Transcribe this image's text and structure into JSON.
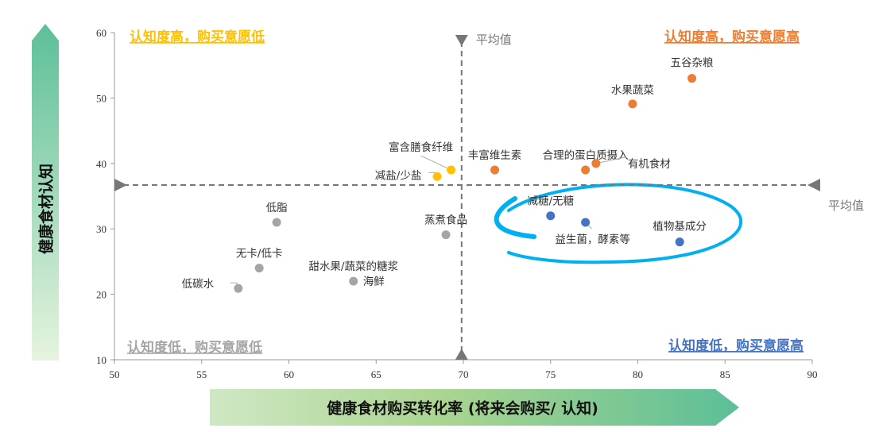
{
  "chart_data": {
    "type": "scatter",
    "title": "",
    "xlabel": "健康食材购买转化率 (将来会购买/ 认知)",
    "ylabel": "健康食材认知",
    "xlim": [
      50,
      90
    ],
    "ylim": [
      10,
      60
    ],
    "xticks": [
      50,
      55,
      60,
      65,
      70,
      75,
      80,
      85,
      90
    ],
    "yticks": [
      10,
      20,
      30,
      40,
      50,
      60
    ],
    "grid": false,
    "averages": {
      "x": 69.9,
      "y": 36.7,
      "label_x": "平均值",
      "label_y": "平均值"
    },
    "quadrants": [
      {
        "label": "认知度高，购买意愿低",
        "color": "#ffc000",
        "position": "top-left"
      },
      {
        "label": "认知度高，购买意愿高",
        "color": "#ed7d31",
        "position": "top-right"
      },
      {
        "label": "认知度低，购买意愿低",
        "color": "#a5a5a5",
        "position": "bottom-left"
      },
      {
        "label": "认知度低，购买意愿高",
        "color": "#4472c4",
        "position": "bottom-right"
      }
    ],
    "points": [
      {
        "label": "五谷杂粮",
        "x": 83.1,
        "y": 53.0,
        "color": "#ed7d31"
      },
      {
        "label": "水果蔬菜",
        "x": 79.7,
        "y": 49.1,
        "color": "#ed7d31"
      },
      {
        "label": "丰富维生素",
        "x": 71.8,
        "y": 39.0,
        "color": "#ed7d31"
      },
      {
        "label": "合理的蛋白质摄入",
        "x": 77.0,
        "y": 39.0,
        "color": "#ed7d31"
      },
      {
        "label": "有机食材",
        "x": 77.6,
        "y": 40.0,
        "color": "#ed7d31"
      },
      {
        "label": "富含膳食纤维",
        "x": 69.3,
        "y": 39.0,
        "color": "#ffc000"
      },
      {
        "label": "减盐/少盐",
        "x": 68.5,
        "y": 38.0,
        "color": "#ffc000"
      },
      {
        "label": "减糖/无糖",
        "x": 75.0,
        "y": 32.0,
        "color": "#4472c4"
      },
      {
        "label": "益生菌，酵素等",
        "x": 77.0,
        "y": 31.0,
        "color": "#4472c4"
      },
      {
        "label": "植物基成分",
        "x": 82.4,
        "y": 28.0,
        "color": "#4472c4"
      },
      {
        "label": "低脂",
        "x": 59.3,
        "y": 31.0,
        "color": "#a5a5a5"
      },
      {
        "label": "蒸煮食品",
        "x": 69.0,
        "y": 29.1,
        "color": "#a5a5a5"
      },
      {
        "label": "无卡/低卡",
        "x": 58.3,
        "y": 24.0,
        "color": "#a5a5a5"
      },
      {
        "label": "甜水果/蔬菜的糖浆",
        "x": 63.7,
        "y": 22.0,
        "color": "#a5a5a5"
      },
      {
        "label": "海鲜",
        "x": 63.7,
        "y": 22.0,
        "color": "#a5a5a5"
      },
      {
        "label": "低碳水",
        "x": 57.1,
        "y": 20.9,
        "color": "#a5a5a5"
      }
    ],
    "highlight_color": "#00b0f0"
  }
}
